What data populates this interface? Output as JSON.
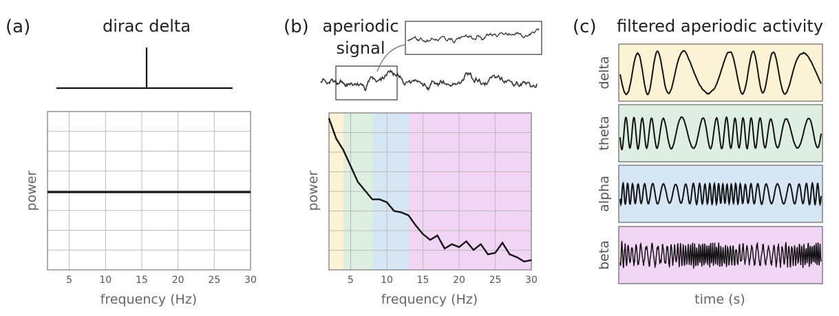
{
  "panels": {
    "a": {
      "letter": "(a)",
      "title": "dirac delta",
      "xlabel": "frequency (Hz)",
      "ylabel": "power",
      "xticks": [
        "5",
        "10",
        "15",
        "20",
        "25",
        "30"
      ]
    },
    "b": {
      "letter": "(b)",
      "title_line1": "aperiodic",
      "title_line2": "signal",
      "xlabel": "frequency (Hz)",
      "ylabel": "power",
      "xticks": [
        "5",
        "10",
        "15",
        "20",
        "25",
        "30"
      ]
    },
    "c": {
      "letter": "(c)",
      "title": "filtered aperiodic activity",
      "xlabel": "time (s)",
      "bands": [
        "delta",
        "theta",
        "alpha",
        "beta"
      ]
    }
  },
  "colors": {
    "delta": "#fbf3d3",
    "theta": "#dcefe0",
    "alpha": "#d7e6f5",
    "beta": "#f2d4f4",
    "line": "#111111",
    "grid": "#bbbbbb"
  },
  "chart_data": [
    {
      "type": "line",
      "x": [
        2,
        30
      ],
      "values": [
        0.5,
        0.5
      ],
      "title": "dirac delta",
      "xlabel": "frequency (Hz)",
      "ylabel": "power",
      "xlim": [
        2,
        30
      ],
      "grid": true
    },
    {
      "type": "line",
      "x": [
        2,
        3,
        4,
        5,
        6,
        7,
        8,
        9,
        10,
        11,
        12,
        13,
        14,
        15,
        16,
        17,
        18,
        19,
        20,
        21,
        22,
        23,
        24,
        25,
        26,
        27,
        28,
        29,
        30
      ],
      "values": [
        1.0,
        0.86,
        0.78,
        0.67,
        0.56,
        0.5,
        0.44,
        0.44,
        0.42,
        0.36,
        0.35,
        0.33,
        0.26,
        0.2,
        0.16,
        0.19,
        0.1,
        0.13,
        0.11,
        0.15,
        0.09,
        0.13,
        0.06,
        0.07,
        0.14,
        0.06,
        0.04,
        0.01,
        0.02
      ],
      "xlabel": "frequency (Hz)",
      "ylabel": "power",
      "xlim": [
        2,
        30
      ],
      "ylim": [
        0,
        1
      ],
      "grid": true,
      "bands": [
        {
          "name": "delta",
          "range": [
            2,
            4
          ]
        },
        {
          "name": "theta",
          "range": [
            4,
            8
          ]
        },
        {
          "name": "alpha",
          "range": [
            8,
            13
          ]
        },
        {
          "name": "beta",
          "range": [
            13,
            30
          ]
        }
      ]
    }
  ]
}
